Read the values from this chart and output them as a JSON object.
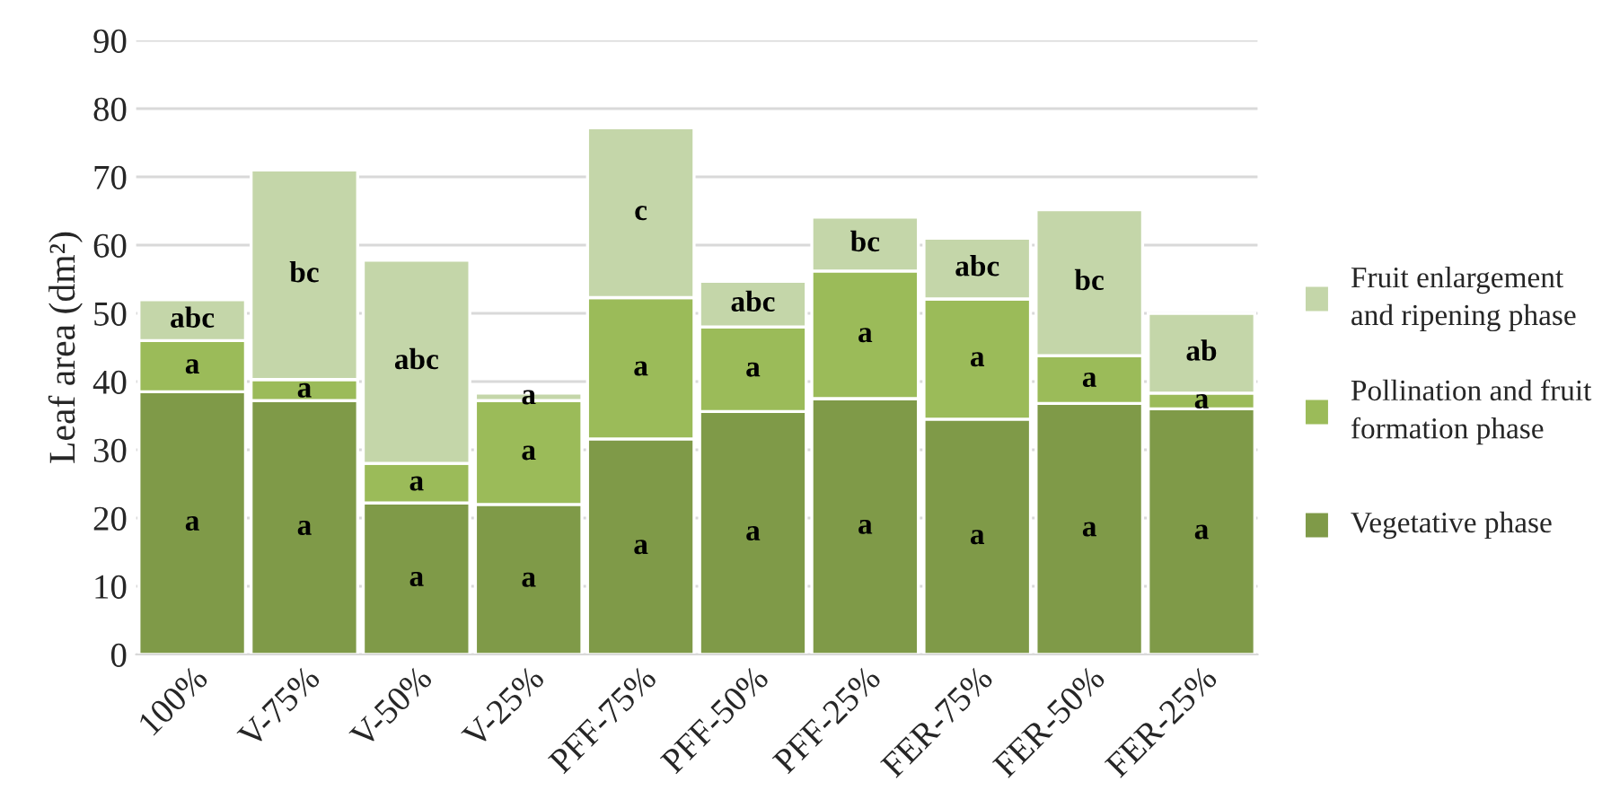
{
  "chart_data": {
    "type": "bar",
    "stacked": true,
    "ylabel": "Leaf area (dm²)",
    "categories": [
      "100%",
      "V-75%",
      "V-50%",
      "V-25%",
      "PFF-75%",
      "PFF-50%",
      "PFF-25%",
      "FER-75%",
      "FER-50%",
      "FER-25%"
    ],
    "series": [
      {
        "name": "Vegetative phase",
        "color": "#7f9a48",
        "values": [
          38.5,
          37.2,
          22.2,
          22,
          31.6,
          35.6,
          37.5,
          34.5,
          36.8,
          36
        ],
        "value_labels": [
          "a",
          "a",
          "a",
          "a",
          "a",
          "a",
          "a",
          "a",
          "a",
          "a"
        ]
      },
      {
        "name": "Pollination and fruit formation phase",
        "color": "#9bbb59",
        "values": [
          7.5,
          3.1,
          5.8,
          15.2,
          20.7,
          12.4,
          18.7,
          17.6,
          7,
          2.3
        ],
        "value_labels": [
          "a",
          "a",
          "a",
          "a",
          "a",
          "a",
          "a",
          "a",
          "a",
          "a"
        ]
      },
      {
        "name": "Fruit enlargement and ripening phase",
        "color": "#c4d6a9",
        "values": [
          6,
          30.7,
          29.8,
          1.1,
          24.9,
          6.7,
          7.9,
          8.9,
          21.4,
          11.7
        ],
        "value_labels": [
          "abc",
          "bc",
          "abc",
          "a",
          "c",
          "abc",
          "bc",
          "abc",
          "bc",
          "ab"
        ]
      }
    ],
    "ylim": [
      0,
      90
    ],
    "yticks": [
      0,
      10,
      20,
      30,
      40,
      50,
      60,
      70,
      80,
      90
    ],
    "grid": "y",
    "legend": "right"
  }
}
